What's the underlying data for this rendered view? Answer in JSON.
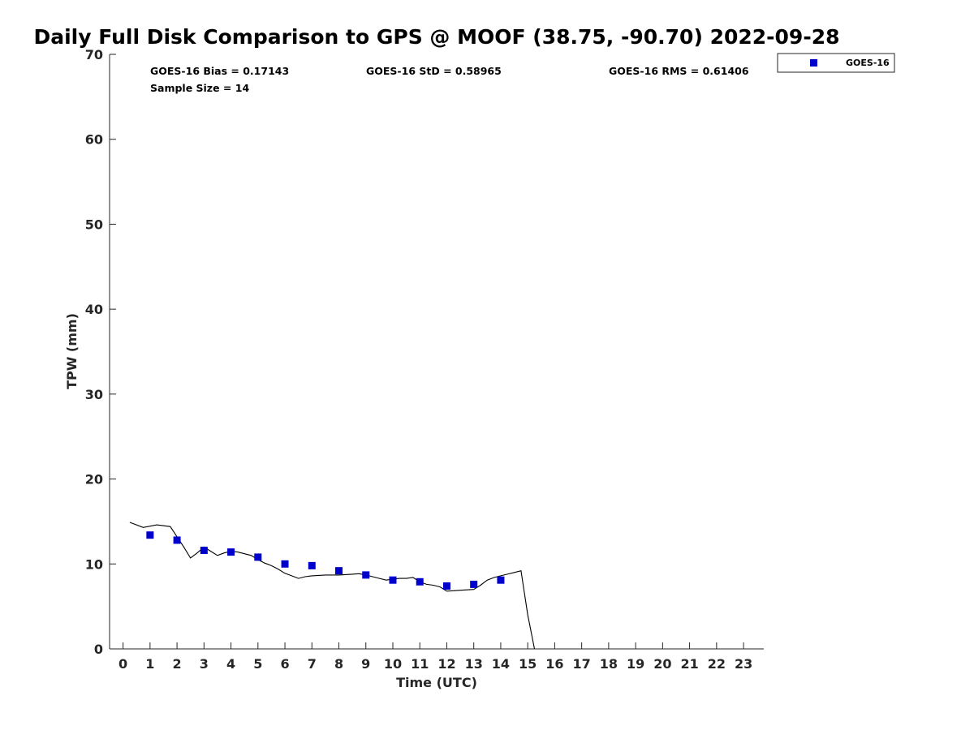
{
  "chart_data": {
    "type": "scatter",
    "title": "Daily Full Disk Comparison to GPS @ MOOF (38.75, -90.70) 2022-09-28",
    "xlabel": "Time (UTC)",
    "ylabel": "TPW (mm)",
    "xlim": [
      -0.5,
      23.75
    ],
    "ylim": [
      0,
      70
    ],
    "xticks": [
      0,
      1,
      2,
      3,
      4,
      5,
      6,
      7,
      8,
      9,
      10,
      11,
      12,
      13,
      14,
      15,
      16,
      17,
      18,
      19,
      20,
      21,
      22,
      23
    ],
    "yticks": [
      0,
      10,
      20,
      30,
      40,
      50,
      60,
      70
    ],
    "grid": false,
    "legend_position": "top-right",
    "stats": {
      "bias": "GOES-16 Bias = 0.17143",
      "std": "GOES-16 StD = 0.58965",
      "rms": "GOES-16 RMS = 0.61406",
      "sample": "Sample Size = 14"
    },
    "series": [
      {
        "name": "GOES-16",
        "kind": "scatter",
        "marker": "square",
        "color": "#0000cc",
        "x": [
          1,
          2,
          3,
          4,
          5,
          6,
          7,
          8,
          9,
          10,
          11,
          12,
          13,
          14
        ],
        "y": [
          13.4,
          12.8,
          11.6,
          11.4,
          10.8,
          10.0,
          9.8,
          9.2,
          8.7,
          8.1,
          7.9,
          7.4,
          7.6,
          8.1
        ]
      },
      {
        "kind": "line",
        "color": "#000000",
        "x": [
          0.25,
          0.75,
          1.25,
          1.75,
          2.0,
          2.25,
          2.5,
          2.75,
          3.0,
          3.25,
          3.5,
          3.75,
          4.0,
          4.25,
          4.5,
          4.75,
          5.0,
          5.25,
          5.5,
          5.75,
          6.0,
          6.25,
          6.5,
          6.75,
          7.0,
          7.25,
          7.5,
          7.75,
          8.0,
          8.25,
          8.5,
          8.75,
          9.0,
          9.25,
          9.5,
          9.75,
          10.0,
          10.25,
          10.5,
          10.75,
          11.0,
          11.25,
          11.5,
          11.75,
          12.0,
          12.25,
          12.5,
          12.75,
          13.0,
          13.25,
          13.5,
          13.75,
          14.0,
          14.25,
          14.5,
          14.75,
          15.0,
          15.25
        ],
        "y": [
          14.9,
          14.3,
          14.6,
          14.4,
          13.2,
          12.0,
          10.7,
          11.3,
          12.0,
          11.5,
          11.0,
          11.3,
          11.5,
          11.4,
          11.2,
          11.0,
          10.5,
          10.1,
          9.8,
          9.4,
          8.9,
          8.6,
          8.3,
          8.5,
          8.6,
          8.65,
          8.7,
          8.7,
          8.7,
          8.75,
          8.8,
          8.85,
          8.7,
          8.5,
          8.3,
          8.1,
          8.2,
          8.3,
          8.3,
          8.4,
          7.9,
          7.6,
          7.5,
          7.3,
          6.8,
          6.85,
          6.9,
          6.95,
          7.0,
          7.5,
          8.1,
          8.4,
          8.6,
          8.8,
          9.0,
          9.2,
          4.0,
          0.0
        ]
      }
    ]
  }
}
